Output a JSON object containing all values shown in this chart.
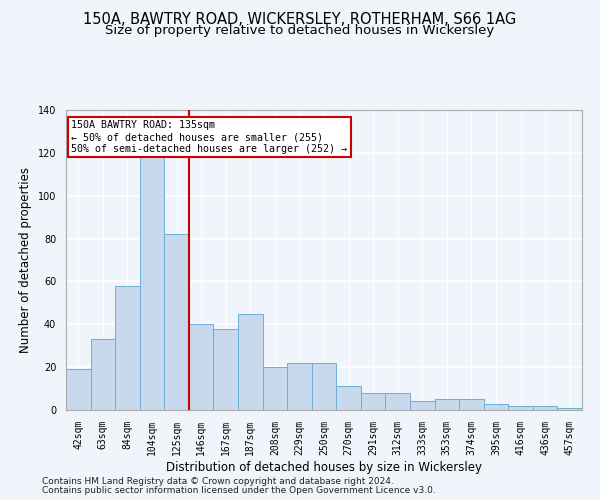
{
  "title1": "150A, BAWTRY ROAD, WICKERSLEY, ROTHERHAM, S66 1AG",
  "title2": "Size of property relative to detached houses in Wickersley",
  "xlabel": "Distribution of detached houses by size in Wickersley",
  "ylabel": "Number of detached properties",
  "categories": [
    "42sqm",
    "63sqm",
    "84sqm",
    "104sqm",
    "125sqm",
    "146sqm",
    "167sqm",
    "187sqm",
    "208sqm",
    "229sqm",
    "250sqm",
    "270sqm",
    "291sqm",
    "312sqm",
    "333sqm",
    "353sqm",
    "374sqm",
    "395sqm",
    "416sqm",
    "436sqm",
    "457sqm"
  ],
  "values": [
    19,
    33,
    58,
    118,
    82,
    40,
    38,
    45,
    20,
    22,
    22,
    11,
    8,
    8,
    4,
    5,
    5,
    3,
    2,
    2,
    1
  ],
  "bar_color": "#c8d9ee",
  "bar_edge_color": "#6baed6",
  "annotation_text": "150A BAWTRY ROAD: 135sqm\n← 50% of detached houses are smaller (255)\n50% of semi-detached houses are larger (252) →",
  "annotation_box_color": "#ffffff",
  "annotation_box_edge": "#cc0000",
  "vline_color": "#cc0000",
  "ylim": [
    0,
    140
  ],
  "yticks": [
    0,
    20,
    40,
    60,
    80,
    100,
    120,
    140
  ],
  "footnote1": "Contains HM Land Registry data © Crown copyright and database right 2024.",
  "footnote2": "Contains public sector information licensed under the Open Government Licence v3.0.",
  "background_color": "#f0f4fb",
  "plot_bg_color": "#f0f4fb",
  "grid_color": "#ffffff",
  "title_fontsize": 10.5,
  "subtitle_fontsize": 9.5,
  "axis_label_fontsize": 8.5,
  "tick_fontsize": 7,
  "footnote_fontsize": 6.5,
  "vline_x": 4.5
}
